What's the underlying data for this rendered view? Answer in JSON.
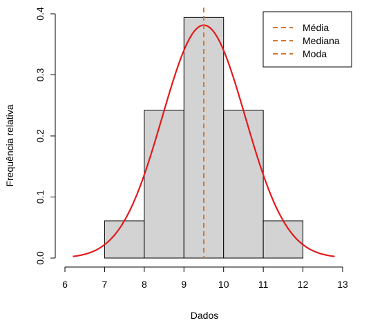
{
  "chart_data": {
    "type": "bar",
    "subtype": "histogram-with-density-curve",
    "xlabel": "Dados",
    "ylabel": "Frequência relativa",
    "xlim": [
      6,
      13
    ],
    "ylim": [
      0,
      0.4
    ],
    "xticks": [
      "6",
      "7",
      "8",
      "9",
      "10",
      "11",
      "12",
      "13"
    ],
    "yticks": [
      "0.0",
      "0.1",
      "0.2",
      "0.3",
      "0.4"
    ],
    "grid": false,
    "bins": [
      {
        "from": 7,
        "to": 8,
        "value": 0.061
      },
      {
        "from": 8,
        "to": 9,
        "value": 0.242
      },
      {
        "from": 9,
        "to": 10,
        "value": 0.394
      },
      {
        "from": 10,
        "to": 11,
        "value": 0.242
      },
      {
        "from": 11,
        "to": 12,
        "value": 0.061
      }
    ],
    "bar_color": "#d3d3d3",
    "density_curve": {
      "distribution": "normal",
      "mean": 9.5,
      "sd": 1.046,
      "x_from": 6.2,
      "x_to": 12.8,
      "color": "#e31a1c"
    },
    "reference_lines": [
      {
        "name": "Média",
        "x": 9.5
      },
      {
        "name": "Mediana",
        "x": 9.5
      },
      {
        "name": "Moda",
        "x": 9.5
      }
    ],
    "reference_line_color": "#d2782b",
    "legend": {
      "position": "top-right",
      "entries": [
        "Média",
        "Mediana",
        "Moda"
      ]
    }
  }
}
